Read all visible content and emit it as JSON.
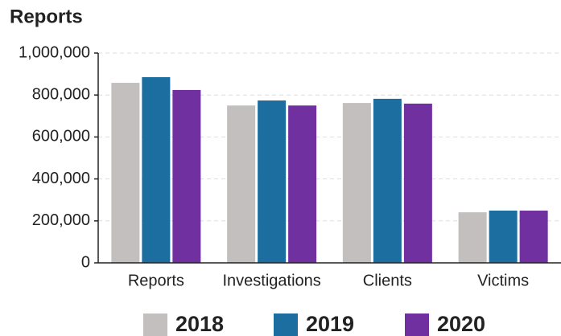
{
  "chart_data": {
    "type": "bar",
    "title": "Reports",
    "categories": [
      "Reports",
      "Investigations",
      "Clients",
      "Victims"
    ],
    "series": [
      {
        "name": "2018",
        "color": "#c3bfbf",
        "values": [
          858000,
          750000,
          762000,
          241000
        ]
      },
      {
        "name": "2019",
        "color": "#1b6e9f",
        "values": [
          885000,
          774000,
          782000,
          249000
        ]
      },
      {
        "name": "2020",
        "color": "#7030a0",
        "values": [
          824000,
          750000,
          759000,
          249000
        ]
      }
    ],
    "ylim": [
      0,
      1000000
    ],
    "yticks": [
      0,
      {
        "value": 200000,
        "label": "200,000"
      },
      {
        "value": 400000,
        "label": "400,000"
      },
      {
        "value": 600000,
        "label": "600,000"
      },
      {
        "value": 800000,
        "label": "800,000"
      },
      {
        "value": 1000000,
        "label": "1,000,000"
      }
    ],
    "grid": true,
    "legend": "bottom"
  }
}
